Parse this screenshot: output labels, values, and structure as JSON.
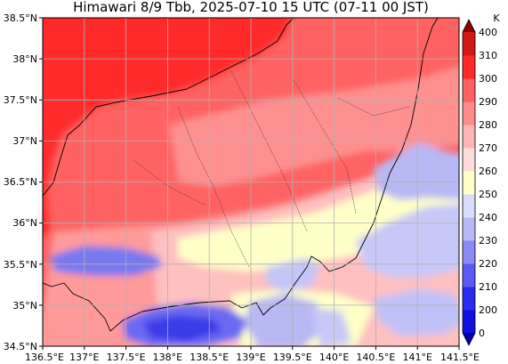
{
  "title": "Himawari 8/9 Tbb, 2025-07-10 15 UTC (07-11 00 JST)",
  "colorbar": {
    "unit": "K",
    "labels": [
      "0",
      "200",
      "210",
      "220",
      "230",
      "240",
      "250",
      "260",
      "270",
      "280",
      "290",
      "300",
      "310",
      "400"
    ],
    "colors": [
      "#0000a8",
      "#1010e0",
      "#2a2af0",
      "#5a5af5",
      "#8a8af5",
      "#b8b8f5",
      "#dadafa",
      "#ffffc8",
      "#ffdcdc",
      "#ffb4b4",
      "#ff8a8a",
      "#ff6060",
      "#ff2a2a",
      "#d01818",
      "#8c0000"
    ]
  },
  "axes": {
    "x_ticks": [
      "136.5°E",
      "137°E",
      "137.5°E",
      "138°E",
      "138.5°E",
      "139°E",
      "139.5°E",
      "140°E",
      "140.5°E",
      "141°E",
      "141.5°E"
    ],
    "y_ticks": [
      "38.5°N",
      "38°N",
      "37.5°N",
      "37°N",
      "36.5°N",
      "36°N",
      "35.5°N",
      "35°N",
      "34.5°N"
    ],
    "lon_range": [
      136.5,
      141.5
    ],
    "lat_range": [
      34.5,
      38.5
    ],
    "grid": true
  }
}
